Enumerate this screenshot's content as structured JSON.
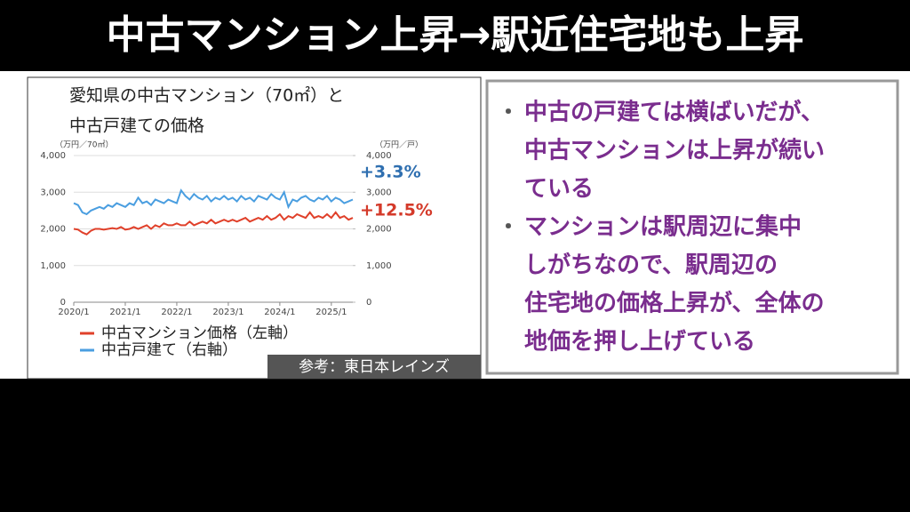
{
  "slide": {
    "title": "中古マンション上昇→駅近住宅地も上昇",
    "source": "参考：東日本レインズ",
    "bullets": [
      {
        "mark": "・",
        "lines": [
          "中古の戸建ては横ばいだが、",
          "中古マンションは上昇が続い",
          "ている"
        ]
      },
      {
        "mark": "・",
        "lines": [
          "マンションは駅周辺に集中",
          "しがちなので、駅周辺の",
          "住宅地の価格上昇が、全体の",
          "地価を押し上げている"
        ]
      }
    ]
  },
  "chart_data": {
    "type": "line",
    "title": [
      "愛知県の中古マンション（70㎡）と",
      "中古戸建ての価格"
    ],
    "y_label": "（万円／70㎡）",
    "y2_label": "（万円／戸）",
    "categories": [
      "2020/1",
      null,
      null,
      null,
      null,
      null,
      null,
      null,
      null,
      null,
      null,
      null,
      "2021/1",
      null,
      null,
      null,
      null,
      null,
      null,
      null,
      null,
      null,
      null,
      null,
      "2022/1",
      null,
      null,
      null,
      null,
      null,
      null,
      null,
      null,
      null,
      null,
      null,
      "2023/1",
      null,
      null,
      null,
      null,
      null,
      null,
      null,
      null,
      null,
      null,
      null,
      "2024/1",
      null,
      null,
      null,
      null,
      null,
      null,
      null,
      null,
      null,
      null,
      null,
      "2025/1",
      null,
      null,
      null,
      null,
      null
    ],
    "series": [
      {
        "name": "中古マンション価格（左軸）",
        "color": "#e0402a",
        "axis": "y",
        "values": [
          2000,
          1980,
          1900,
          1850,
          1950,
          2000,
          2000,
          1980,
          2000,
          2020,
          2000,
          2050,
          1980,
          2000,
          2050,
          2000,
          2050,
          2100,
          2000,
          2100,
          2050,
          2150,
          2100,
          2100,
          2150,
          2100,
          2100,
          2200,
          2100,
          2150,
          2200,
          2150,
          2250,
          2150,
          2200,
          2250,
          2200,
          2250,
          2200,
          2250,
          2300,
          2200,
          2250,
          2300,
          2250,
          2350,
          2250,
          2300,
          2400,
          2250,
          2350,
          2300,
          2400,
          2350,
          2300,
          2450,
          2300,
          2350,
          2300,
          2400,
          2300,
          2450,
          2300,
          2350,
          2250,
          2300
        ]
      },
      {
        "name": "中古戸建て（右軸）",
        "color": "#4a9ee0",
        "axis": "y2",
        "values": [
          2700,
          2650,
          2450,
          2400,
          2500,
          2550,
          2600,
          2550,
          2650,
          2600,
          2700,
          2650,
          2600,
          2700,
          2650,
          2850,
          2700,
          2750,
          2650,
          2800,
          2750,
          2700,
          2800,
          2750,
          2700,
          3050,
          2900,
          2800,
          2950,
          2850,
          2800,
          2900,
          2750,
          2850,
          2800,
          2900,
          2800,
          2850,
          2750,
          2900,
          2800,
          2850,
          2750,
          2900,
          2850,
          2800,
          2950,
          2850,
          2800,
          3000,
          2600,
          2800,
          2750,
          2850,
          2900,
          2800,
          2750,
          2850,
          2800,
          2900,
          2750,
          2850,
          2800,
          2700,
          2750,
          2800
        ]
      }
    ],
    "annotations": [
      {
        "text": "+3.3%",
        "color": "#2f6fb0"
      },
      {
        "text": "+12.5%",
        "color": "#d43a2a"
      }
    ],
    "ylim": [
      0,
      4000
    ],
    "yticks": [
      0,
      {
        "value": 1000,
        "label": "1,000"
      },
      {
        "value": 2000,
        "label": "2,000"
      },
      {
        "value": 3000,
        "label": "3,000"
      },
      {
        "value": 4000,
        "label": "4,000"
      }
    ],
    "y2lim": [
      0,
      4000
    ],
    "y2ticks": [
      0,
      {
        "value": 1000,
        "label": "1,000"
      },
      {
        "value": 2000,
        "label": "2,000"
      },
      {
        "value": 3000,
        "label": "3,000"
      },
      {
        "value": 4000,
        "label": "4,000"
      }
    ],
    "grid": true
  }
}
